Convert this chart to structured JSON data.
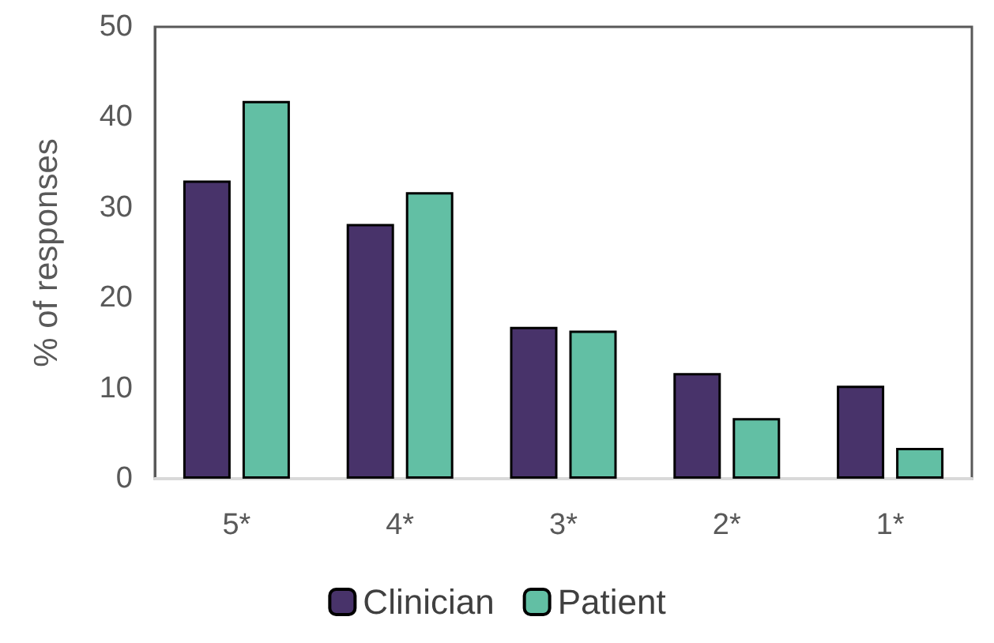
{
  "chart_data": {
    "type": "bar",
    "ylabel": "% of responses",
    "categories": [
      "5*",
      "4*",
      "3*",
      "2*",
      "1*"
    ],
    "series": [
      {
        "name": "Clinician",
        "color": "#48336a",
        "values": [
          33.0,
          28.2,
          16.8,
          11.7,
          10.3
        ]
      },
      {
        "name": "Patient",
        "color": "#62bfa4",
        "values": [
          41.8,
          31.7,
          16.4,
          6.7,
          3.4
        ]
      }
    ],
    "ylim": [
      0,
      50
    ],
    "yticks": [
      0,
      10,
      20,
      30,
      40,
      50
    ],
    "grid": false,
    "legend": "bottom"
  }
}
